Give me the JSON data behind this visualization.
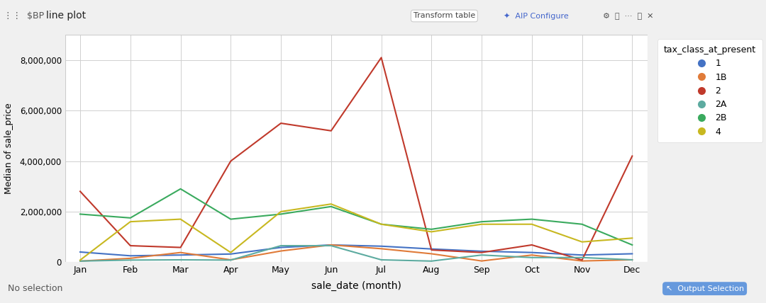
{
  "months": [
    "Jan",
    "Feb",
    "Mar",
    "Apr",
    "May",
    "Jun",
    "Jul",
    "Aug",
    "Sep",
    "Oct",
    "Nov",
    "Dec"
  ],
  "series": {
    "1": {
      "color": "#4472C4",
      "values": [
        400000,
        250000,
        280000,
        320000,
        580000,
        680000,
        630000,
        520000,
        430000,
        380000,
        280000,
        330000
      ]
    },
    "1B": {
      "color": "#E07B39",
      "values": [
        40000,
        150000,
        380000,
        90000,
        440000,
        680000,
        530000,
        330000,
        45000,
        280000,
        45000,
        90000
      ]
    },
    "2": {
      "color": "#C0392B",
      "values": [
        2800000,
        650000,
        580000,
        4000000,
        5500000,
        5200000,
        8100000,
        480000,
        380000,
        680000,
        80000,
        4200000
      ]
    },
    "2A": {
      "color": "#5DABA0",
      "values": [
        40000,
        80000,
        90000,
        80000,
        650000,
        650000,
        90000,
        40000,
        280000,
        180000,
        180000,
        90000
      ]
    },
    "2B": {
      "color": "#3AAA5E",
      "values": [
        1900000,
        1750000,
        2900000,
        1700000,
        1900000,
        2200000,
        1500000,
        1300000,
        1600000,
        1700000,
        1500000,
        680000
      ]
    },
    "4": {
      "color": "#C8B820",
      "values": [
        80000,
        1600000,
        1700000,
        380000,
        2000000,
        2300000,
        1500000,
        1200000,
        1500000,
        1500000,
        800000,
        950000
      ]
    }
  },
  "xlabel": "sale_date (month)",
  "ylabel": "Median of sale_price",
  "legend_title": "tax_class_at_present",
  "ylim": [
    0,
    9000000
  ],
  "yticks": [
    0,
    2000000,
    4000000,
    6000000,
    8000000
  ],
  "fig_width": 10.8,
  "fig_height": 4.28,
  "bg_color": "#f0f0f0",
  "plot_bg": "#ffffff",
  "grid_color": "#d0d0d0",
  "top_bar_color": "#f8f8f8",
  "bottom_bar_color": "#f8f8f8",
  "top_bar_height": 0.105,
  "bottom_bar_height": 0.095
}
